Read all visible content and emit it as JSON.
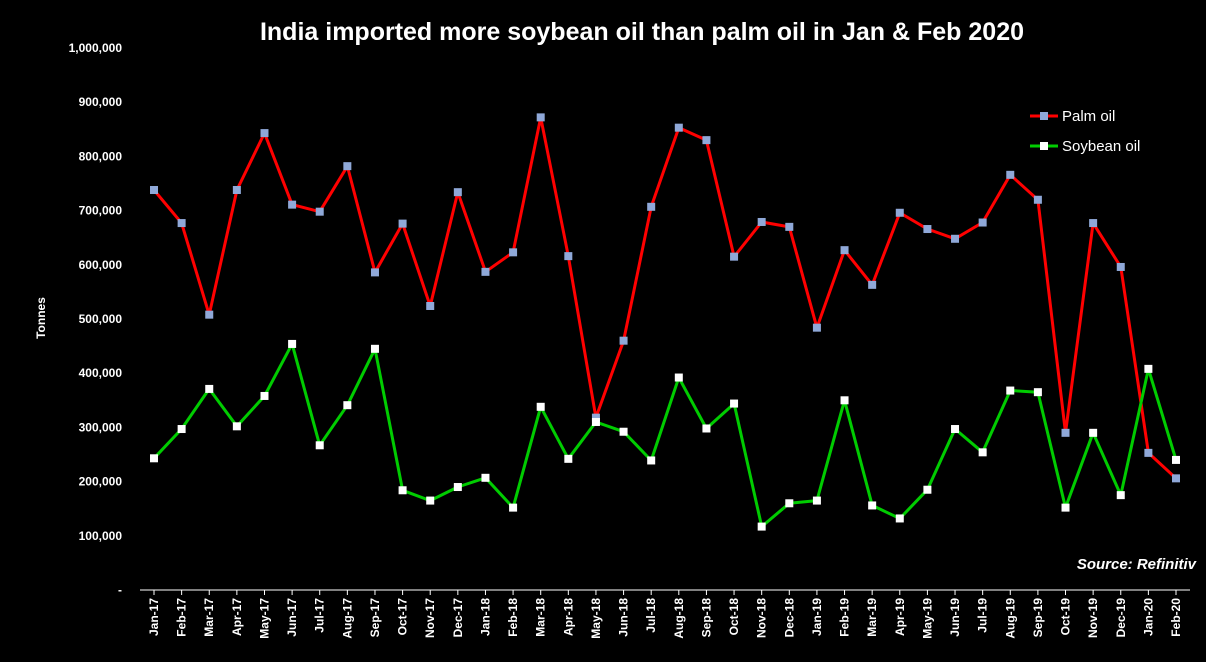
{
  "chart_data": {
    "type": "line",
    "title": "India imported  more soybean oil than palm oil in Jan & Feb 2020",
    "ylabel": "Tonnes",
    "xlabel": "",
    "ylim": [
      0,
      1000000
    ],
    "yticks": [
      "-",
      "100,000",
      "200,000",
      "300,000",
      "400,000",
      "500,000",
      "600,000",
      "700,000",
      "800,000",
      "900,000",
      "1,000,000"
    ],
    "grid": false,
    "legend_position": "top-right",
    "source": "Source: Refinitiv",
    "categories": [
      "Jan-17",
      "Feb-17",
      "Mar-17",
      "Apr-17",
      "May-17",
      "Jun-17",
      "Jul-17",
      "Aug-17",
      "Sep-17",
      "Oct-17",
      "Nov-17",
      "Dec-17",
      "Jan-18",
      "Feb-18",
      "Mar-18",
      "Apr-18",
      "May-18",
      "Jun-18",
      "Jul-18",
      "Aug-18",
      "Sep-18",
      "Oct-18",
      "Nov-18",
      "Dec-18",
      "Jan-19",
      "Feb-19",
      "Mar-19",
      "Apr-19",
      "May-19",
      "Jun-19",
      "Jul-19",
      "Aug-19",
      "Sep-19",
      "Oct-19",
      "Nov-19",
      "Dec-19",
      "Jan-20",
      "Feb-20"
    ],
    "series": [
      {
        "name": "Palm oil",
        "line_color": "#ff0000",
        "marker_color": "#8fa8d8",
        "values": [
          738000,
          677000,
          508000,
          738000,
          843000,
          711000,
          698000,
          782000,
          586000,
          676000,
          524000,
          734000,
          587000,
          623000,
          872000,
          616000,
          318000,
          460000,
          707000,
          853000,
          830000,
          615000,
          679000,
          670000,
          484000,
          627000,
          563000,
          696000,
          666000,
          648000,
          678000,
          766000,
          720000,
          290000,
          677000,
          596000,
          253000,
          206000
        ]
      },
      {
        "name": "Soybean oil",
        "line_color": "#00cc00",
        "marker_color": "#ffffff",
        "values": [
          243000,
          297000,
          371000,
          302000,
          358000,
          454000,
          267000,
          341000,
          445000,
          184000,
          165000,
          190000,
          207000,
          152000,
          338000,
          242000,
          310000,
          292000,
          239000,
          392000,
          298000,
          344000,
          117000,
          160000,
          165000,
          350000,
          156000,
          132000,
          185000,
          297000,
          254000,
          368000,
          365000,
          152000,
          290000,
          175000,
          408000,
          240000
        ]
      }
    ]
  }
}
